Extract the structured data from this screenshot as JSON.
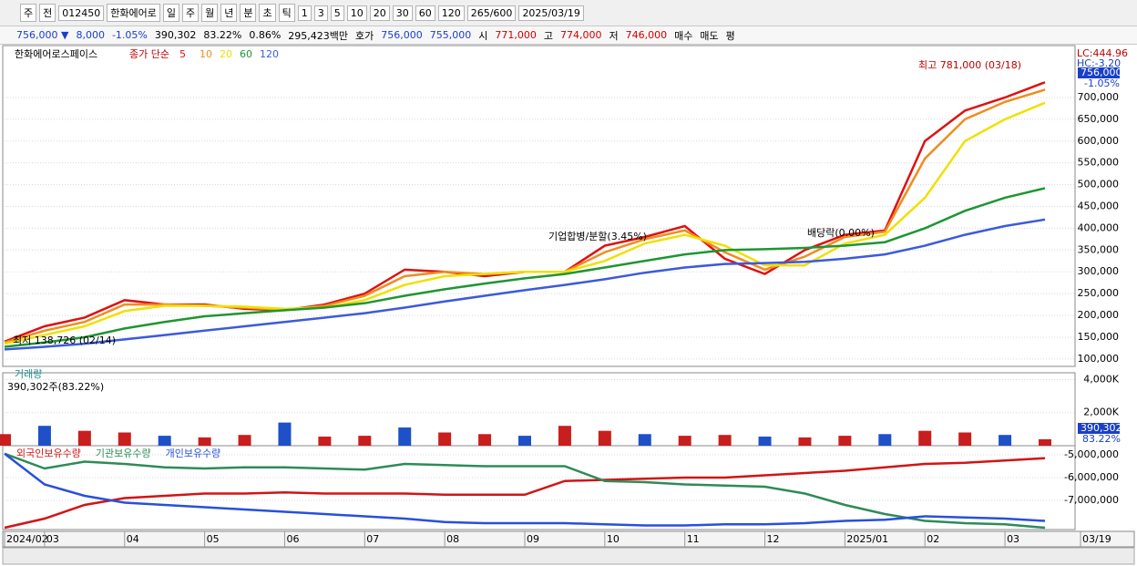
{
  "toolbar": {
    "items": [
      "주",
      "전",
      "012450",
      "한화에어로",
      "일",
      "주",
      "월",
      "년",
      "분",
      "초",
      "틱",
      "1",
      "3",
      "5",
      "10",
      "20",
      "30",
      "60",
      "120",
      "265/600",
      "2025/03/19"
    ]
  },
  "info_bar": {
    "items": [
      {
        "text": "756,000 ▼",
        "color": "#1a3fc8"
      },
      {
        "text": "8,000",
        "color": "#1a3fc8"
      },
      {
        "text": "-1.05%",
        "color": "#1a3fc8"
      },
      {
        "text": "390,302",
        "color": "#000000"
      },
      {
        "text": "83.22%",
        "color": "#000000"
      },
      {
        "text": "0.86%",
        "color": "#000000"
      },
      {
        "text": "295,423백만",
        "color": "#000000"
      },
      {
        "text": "호가",
        "color": "#000000"
      },
      {
        "text": "756,000",
        "color": "#1a3fc8"
      },
      {
        "text": "755,000",
        "color": "#1a3fc8"
      },
      {
        "text": "시",
        "color": "#000000"
      },
      {
        "text": "771,000",
        "color": "#d00000"
      },
      {
        "text": "고",
        "color": "#000000"
      },
      {
        "text": "774,000",
        "color": "#d00000"
      },
      {
        "text": "저",
        "color": "#000000"
      },
      {
        "text": "746,000",
        "color": "#d00000"
      },
      {
        "text": "매수",
        "color": "#000000"
      },
      {
        "text": "매도",
        "color": "#000000"
      },
      {
        "text": "평",
        "color": "#000000"
      }
    ]
  },
  "chart_data": [
    {
      "type": "line",
      "title": "한화에어로스페이스",
      "legend_title": "종가 단순",
      "lc": "LC:444.96",
      "hc": "HC:-3.20",
      "price_label": "756,000",
      "change_label": "-1.05%",
      "annotations": [
        {
          "text": "최고 781,000 (03/18)",
          "color": "#c00000"
        },
        {
          "text": "최저 138,726 (02/14)",
          "color": "#000000"
        },
        {
          "text": "기업합병/분할(3.45%)",
          "color": "#000000"
        },
        {
          "text": "배당락(0.00%)",
          "color": "#000000"
        }
      ],
      "ylim": [
        83000,
        815000
      ],
      "yticks": [
        {
          "value": 100000,
          "label": "100,000"
        },
        {
          "value": 150000,
          "label": "150,000"
        },
        {
          "value": 200000,
          "label": "200,000"
        },
        {
          "value": 250000,
          "label": "250,000"
        },
        {
          "value": 300000,
          "label": "300,000"
        },
        {
          "value": 350000,
          "label": "350,000"
        },
        {
          "value": 400000,
          "label": "400,000"
        },
        {
          "value": 450000,
          "label": "450,000"
        },
        {
          "value": 500000,
          "label": "500,000"
        },
        {
          "value": 550000,
          "label": "550,000"
        },
        {
          "value": 600000,
          "label": "600,000"
        },
        {
          "value": 650000,
          "label": "650,000"
        },
        {
          "value": 700000,
          "label": "700,000"
        }
      ],
      "series": [
        {
          "name": "5",
          "color": "#e01010",
          "values": [
            140000,
            175000,
            195000,
            235000,
            225000,
            225000,
            215000,
            212000,
            225000,
            250000,
            305000,
            300000,
            290000,
            300000,
            300000,
            360000,
            380000,
            405000,
            330000,
            295000,
            350000,
            385000,
            395000,
            600000,
            670000,
            700000,
            735000
          ]
        },
        {
          "name": "10",
          "color": "#f08c1e",
          "values": [
            138000,
            165000,
            185000,
            225000,
            225000,
            222000,
            218000,
            213000,
            222000,
            245000,
            290000,
            300000,
            295000,
            300000,
            300000,
            345000,
            375000,
            395000,
            345000,
            305000,
            335000,
            380000,
            392000,
            560000,
            650000,
            690000,
            718000
          ]
        },
        {
          "name": "20",
          "color": "#f0e000",
          "values": [
            135000,
            155000,
            175000,
            210000,
            222000,
            222000,
            220000,
            215000,
            218000,
            235000,
            270000,
            290000,
            295000,
            300000,
            300000,
            325000,
            365000,
            385000,
            360000,
            315000,
            315000,
            365000,
            385000,
            470000,
            600000,
            650000,
            688000
          ]
        },
        {
          "name": "60",
          "color": "#1e9632",
          "values": [
            128000,
            138000,
            150000,
            170000,
            185000,
            198000,
            205000,
            212000,
            218000,
            228000,
            245000,
            260000,
            273000,
            285000,
            295000,
            310000,
            325000,
            340000,
            350000,
            352000,
            355000,
            360000,
            368000,
            400000,
            440000,
            470000,
            492000
          ]
        },
        {
          "name": "120",
          "color": "#3c5adc",
          "values": [
            122000,
            128000,
            135000,
            145000,
            155000,
            165000,
            175000,
            185000,
            195000,
            205000,
            218000,
            232000,
            245000,
            258000,
            270000,
            283000,
            298000,
            310000,
            318000,
            320000,
            323000,
            330000,
            340000,
            360000,
            385000,
            405000,
            420000
          ]
        }
      ]
    },
    {
      "type": "bar",
      "title": "거래량",
      "subtitle": "390,302주(83.22%)",
      "value_label": "390,302",
      "ratio_label": "83.22%",
      "ylim": [
        0,
        4300
      ],
      "yticks": [
        {
          "value": 2000,
          "label": "2,000K"
        },
        {
          "value": 4000,
          "label": "4,000K"
        }
      ],
      "series": [
        {
          "name": "거래량",
          "color": "#c81e1e",
          "values": [
            700,
            1200,
            900,
            800,
            600,
            500,
            650,
            1400,
            550,
            600,
            1100,
            800,
            700,
            600,
            1200,
            900,
            700,
            600,
            650,
            550,
            500,
            600,
            700,
            900,
            800,
            650,
            390.302
          ]
        }
      ]
    },
    {
      "type": "line",
      "categories": [
        "2024/02",
        "03",
        null,
        "04",
        null,
        "05",
        null,
        "06",
        null,
        "07",
        null,
        "08",
        null,
        "09",
        null,
        "10",
        null,
        "11",
        null,
        "12",
        null,
        "2025/01",
        null,
        "02",
        null,
        "03",
        "03/19"
      ],
      "ylim": [
        -8280000,
        -4680000
      ],
      "yticks": [
        {
          "value": -5000000,
          "label": "-5,000,000"
        },
        {
          "value": -6000000,
          "label": "-6,000,000"
        },
        {
          "value": -7000000,
          "label": "-7,000,000"
        }
      ],
      "series": [
        {
          "name": "외국인보유수량",
          "color": "#d21414",
          "values": [
            -8200000,
            -7800000,
            -7200000,
            -6900000,
            -6800000,
            -6700000,
            -6700000,
            -6650000,
            -6700000,
            -6700000,
            -6700000,
            -6750000,
            -6750000,
            -6750000,
            -6150000,
            -6100000,
            -6050000,
            -6000000,
            -6000000,
            -5900000,
            -5800000,
            -5700000,
            -5550000,
            -5400000,
            -5350000,
            -5250000,
            -5150000
          ]
        },
        {
          "name": "기관보유수량",
          "color": "#2e8b57",
          "values": [
            -4950000,
            -5600000,
            -5300000,
            -5400000,
            -5550000,
            -5600000,
            -5550000,
            -5550000,
            -5600000,
            -5650000,
            -5400000,
            -5450000,
            -5500000,
            -5500000,
            -5500000,
            -6150000,
            -6200000,
            -6300000,
            -6350000,
            -6400000,
            -6700000,
            -7200000,
            -7600000,
            -7900000,
            -8000000,
            -8050000,
            -8200000
          ]
        },
        {
          "name": "개인보유수량",
          "color": "#2850dc",
          "values": [
            -4950000,
            -6300000,
            -6800000,
            -7100000,
            -7200000,
            -7300000,
            -7400000,
            -7500000,
            -7600000,
            -7700000,
            -7800000,
            -7950000,
            -8000000,
            -8000000,
            -8000000,
            -8050000,
            -8100000,
            -8100000,
            -8050000,
            -8050000,
            -8000000,
            -7900000,
            -7850000,
            -7700000,
            -7750000,
            -7800000,
            -7900000
          ]
        }
      ]
    }
  ]
}
